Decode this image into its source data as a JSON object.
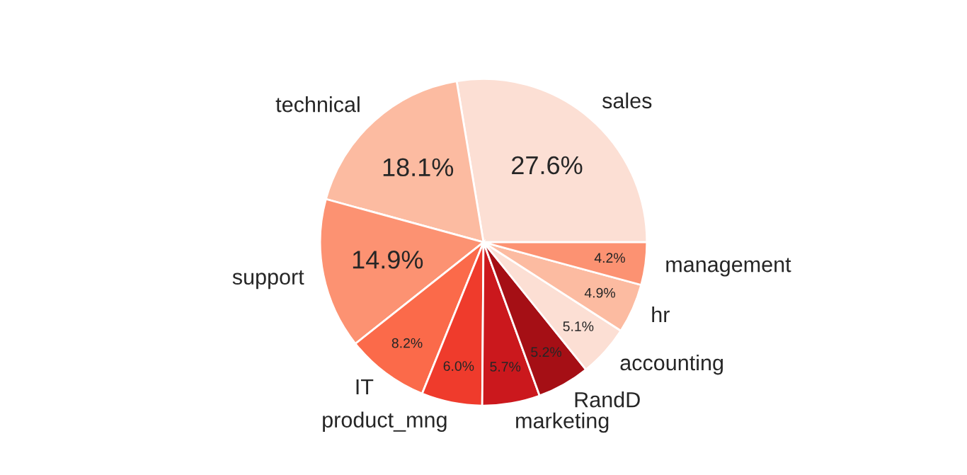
{
  "chart_data": {
    "type": "pie",
    "categories": [
      "sales",
      "technical",
      "support",
      "IT",
      "product_mng",
      "marketing",
      "RandD",
      "accounting",
      "hr",
      "management"
    ],
    "values": [
      27.6,
      18.1,
      14.9,
      8.2,
      6.0,
      5.7,
      5.2,
      5.1,
      4.9,
      4.2
    ],
    "colors": [
      "#fcdfd4",
      "#fcbba1",
      "#fc9272",
      "#fb6a4a",
      "#ef3b2c",
      "#cb181d",
      "#a50f15",
      "#fcdfd4",
      "#fcbba1",
      "#fc9272"
    ],
    "value_labels": [
      "27.6%",
      "18.1%",
      "14.9%",
      "8.2%",
      "6.0%",
      "5.7%",
      "5.2%",
      "5.1%",
      "4.9%",
      "4.2%"
    ]
  }
}
